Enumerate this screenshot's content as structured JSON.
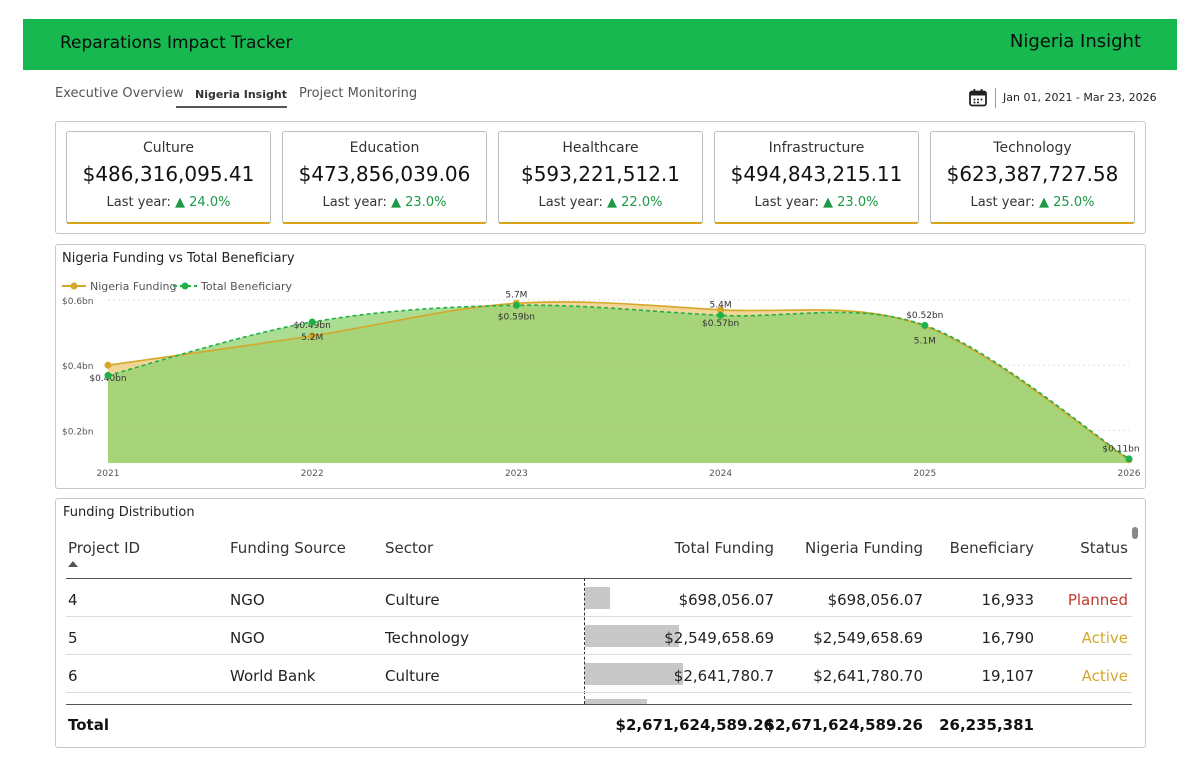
{
  "header": {
    "title": "Reparations Impact Tracker",
    "page_name": "Nigeria Insight",
    "bg_color": "#16b84f"
  },
  "tabs": [
    {
      "label": "Executive Overview"
    },
    {
      "label": "Nigeria Insight",
      "active": true
    },
    {
      "label": "Project Monitoring"
    }
  ],
  "date_range": {
    "icon": "calendar-icon",
    "text": "Jan 01, 2021 - Mar 23, 2026"
  },
  "kpis": [
    {
      "sector": "Culture",
      "value": "$486,316,095.41",
      "last_year_label": "Last year:",
      "change": "▲ 24.0%"
    },
    {
      "sector": "Education",
      "value": "$473,856,039.06",
      "last_year_label": "Last year:",
      "change": "▲ 23.0%"
    },
    {
      "sector": "Healthcare",
      "value": "$593,221,512.1",
      "last_year_label": "Last year:",
      "change": "▲ 22.0%"
    },
    {
      "sector": "Infrastructure",
      "value": "$494,843,215.11",
      "last_year_label": "Last year:",
      "change": "▲ 23.0%"
    },
    {
      "sector": "Technology",
      "value": "$623,387,727.58",
      "last_year_label": "Last year:",
      "change": "▲ 25.0%"
    }
  ],
  "chart_data": {
    "type": "area",
    "title": "Nigeria Funding vs Total Beneficiary",
    "x": [
      "2021",
      "2022",
      "2023",
      "2024",
      "2025",
      "2026"
    ],
    "y_ticks": [
      "$0.2bn",
      "$0.4bn",
      "$0.6bn"
    ],
    "ylim": [
      0.1,
      0.6
    ],
    "legend_position": "top-left",
    "series": [
      {
        "name": "Nigeria Funding",
        "color": "#d4a82a",
        "values": [
          0.4,
          0.49,
          0.59,
          0.57,
          0.52,
          0.11
        ],
        "labels": [
          "$0.40bn",
          "$0.49bn",
          "$0.59bn",
          "$0.57bn",
          "$0.52bn",
          "$0.11bn"
        ]
      },
      {
        "name": "Total Beneficiary",
        "color": "#1fb04a",
        "values": [
          3.6,
          5.2,
          5.7,
          5.4,
          5.1,
          1.1
        ],
        "labels": [
          "",
          "5.2M",
          "5.7M",
          "5.4M",
          "5.1M",
          ""
        ]
      }
    ]
  },
  "table": {
    "title": "Funding Distribution",
    "columns": [
      "Project ID",
      "Funding Source",
      "Sector",
      "Total Funding",
      "Nigeria Funding",
      "Beneficiary",
      "Status"
    ],
    "rows": [
      {
        "id": "4",
        "source": "NGO",
        "sector": "Culture",
        "total": "$698,056.07",
        "total_share": 0.26,
        "nigeria": "$698,056.07",
        "beneficiary": "16,933",
        "status": "Planned",
        "status_color": "#c0392b"
      },
      {
        "id": "5",
        "source": "NGO",
        "sector": "Technology",
        "total": "$2,549,658.69",
        "total_share": 0.96,
        "nigeria": "$2,549,658.69",
        "beneficiary": "16,790",
        "status": "Active",
        "status_color": "#d4a82a"
      },
      {
        "id": "6",
        "source": "World Bank",
        "sector": "Culture",
        "total": "$2,641,780.7",
        "total_share": 1.0,
        "nigeria": "$2,641,780.70",
        "beneficiary": "19,107",
        "status": "Active",
        "status_color": "#d4a82a"
      }
    ],
    "total": {
      "label": "Total",
      "total": "$2,671,624,589.26",
      "nigeria": "$2,671,624,589.26",
      "beneficiary": "26,235,381"
    }
  }
}
